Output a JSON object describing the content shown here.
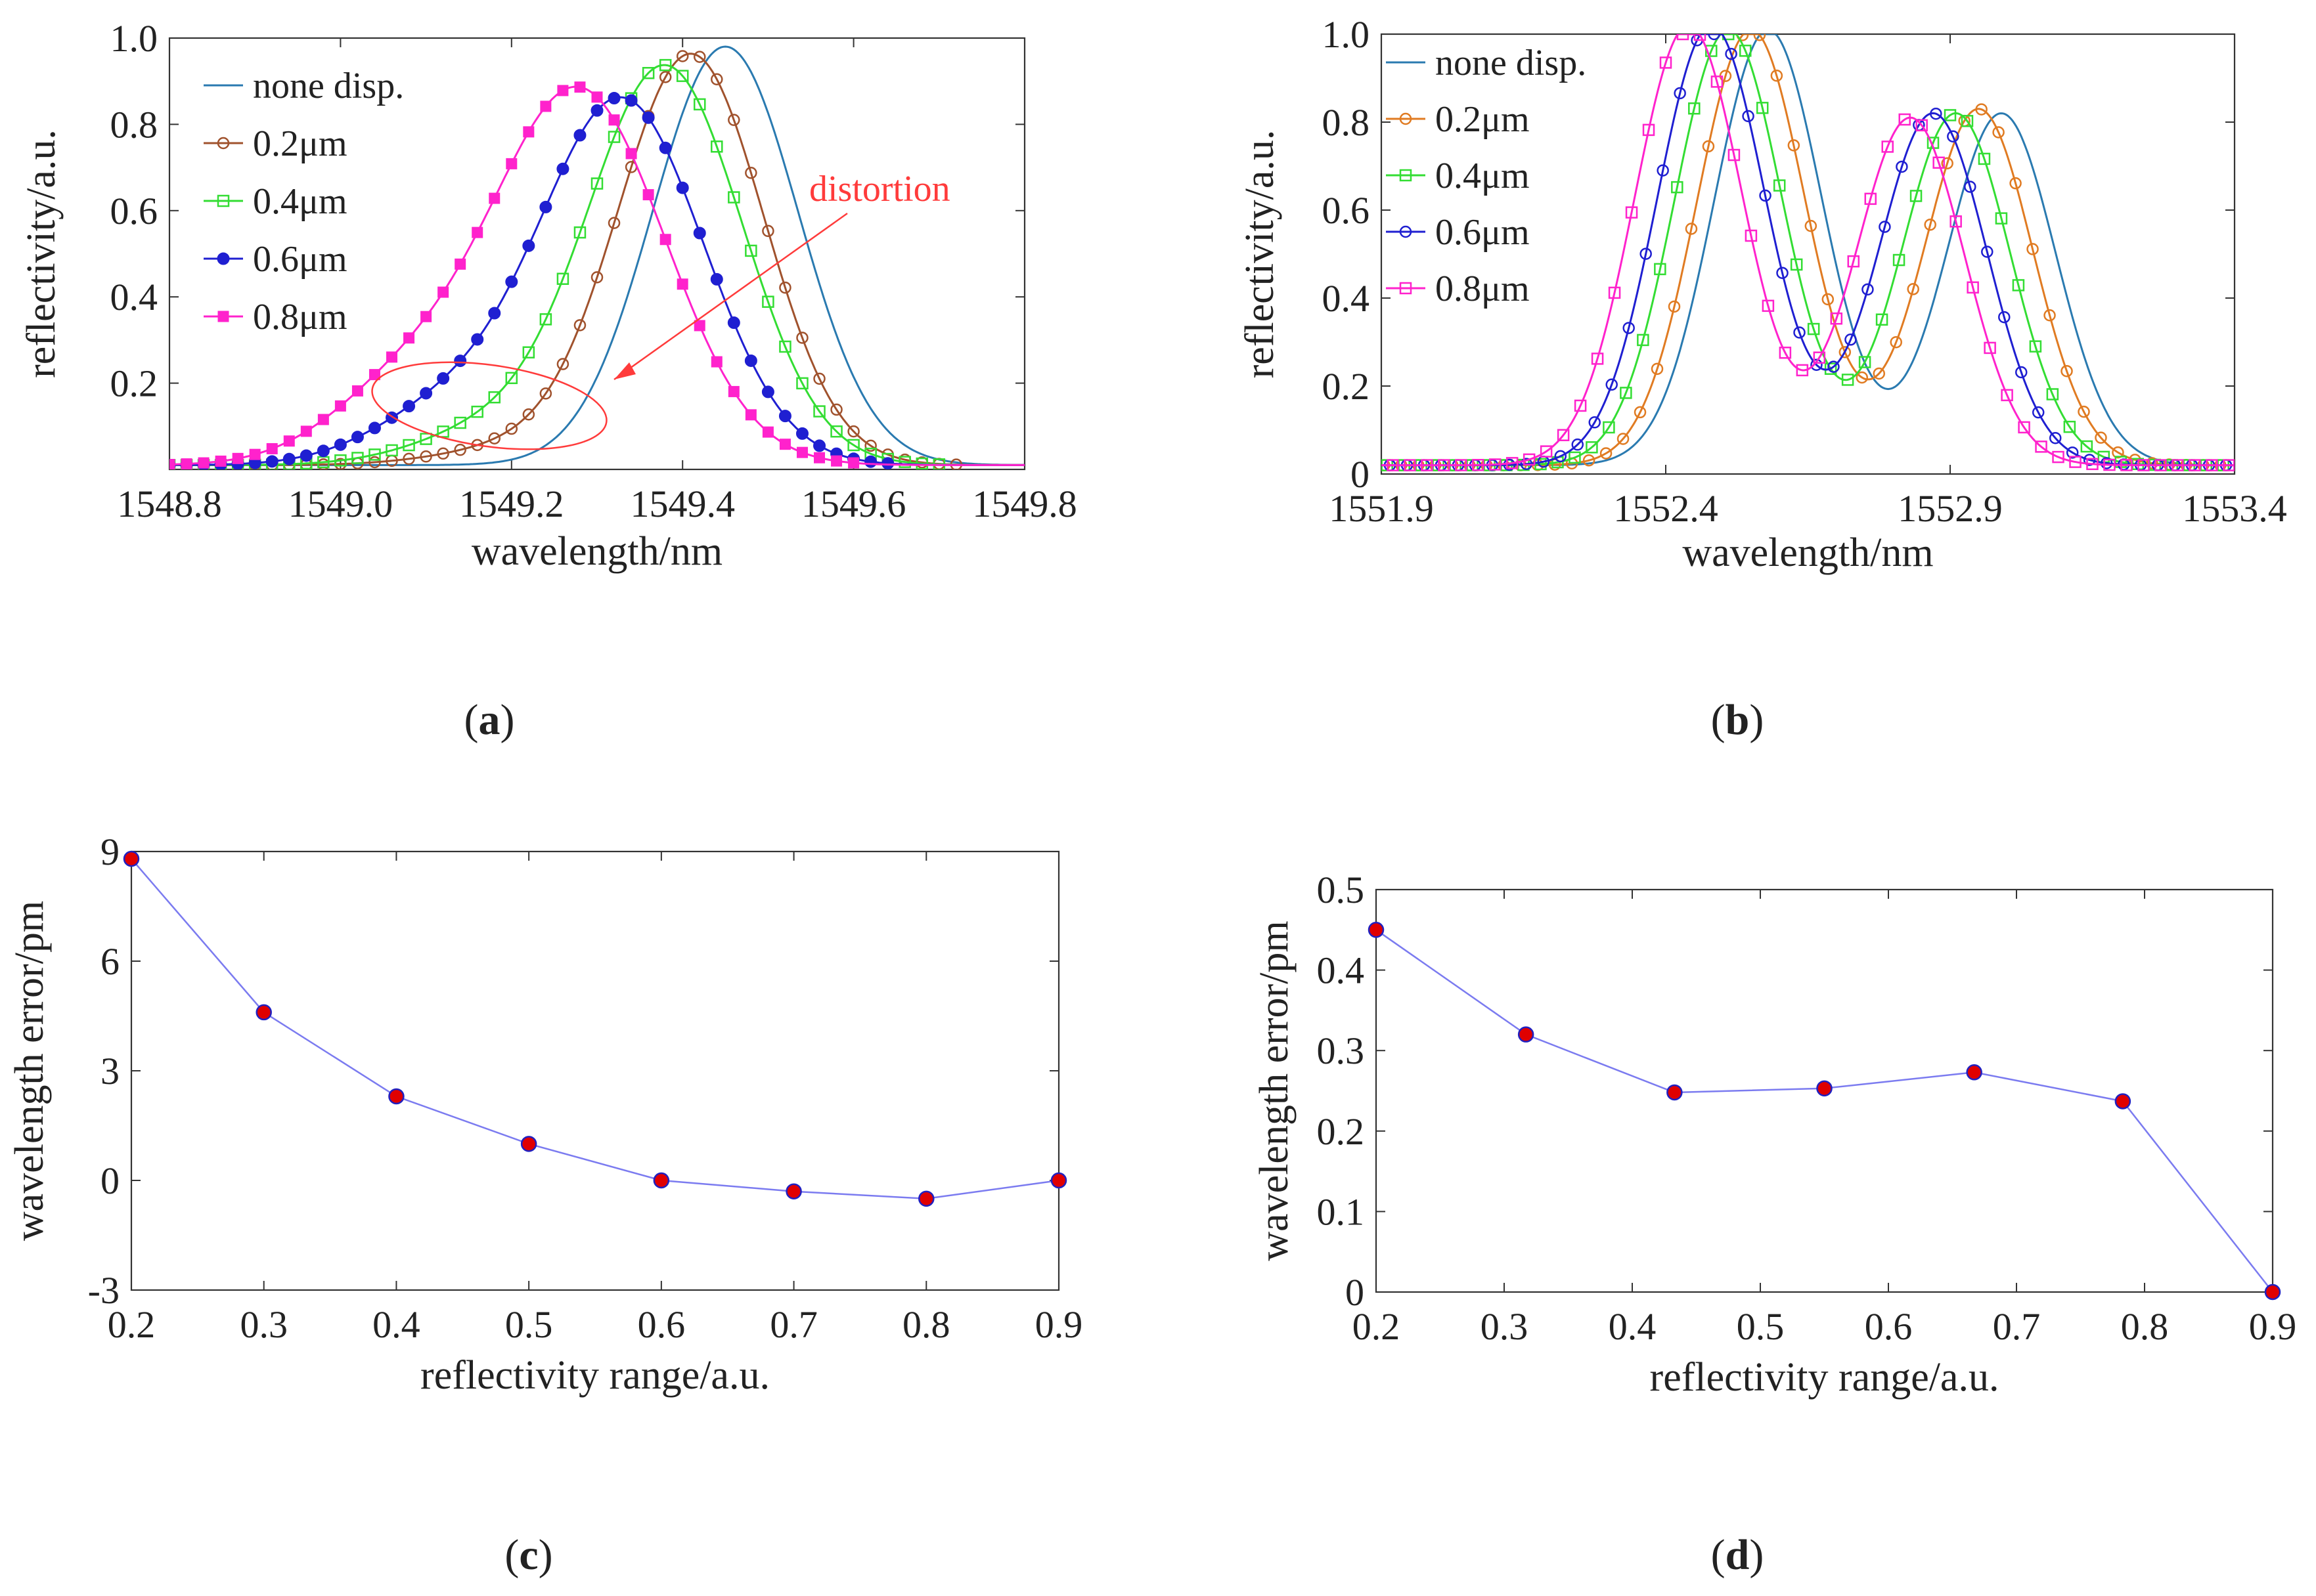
{
  "panels": {
    "a": {
      "label": "a"
    },
    "b": {
      "label": "b"
    },
    "c": {
      "label": "c"
    },
    "d": {
      "label": "d"
    }
  },
  "annotation_a": {
    "text": "distortion",
    "color": "#ff3b3b"
  },
  "chart_data": [
    {
      "id": "a",
      "type": "line",
      "title": "",
      "xlabel": "wavelength/nm",
      "ylabel": "reflectivity/a.u.",
      "xlim": [
        1548.8,
        1549.8
      ],
      "ylim": [
        0,
        1.0
      ],
      "xticks": [
        1548.8,
        1549.0,
        1549.2,
        1549.4,
        1549.6,
        1549.8
      ],
      "xtick_labels": [
        "1548.8",
        "1549.0",
        "1549.2",
        "1549.4",
        "1549.6",
        "1549.8"
      ],
      "yticks": [
        0.2,
        0.4,
        0.6,
        0.8,
        1.0
      ],
      "ytick_labels": [
        "0.2",
        "0.4",
        "0.6",
        "0.8",
        "1.0"
      ],
      "legend_position": "top-left",
      "series": [
        {
          "name": "none disp.",
          "color": "#2a7ab0",
          "marker": "none",
          "peak_x": 1549.45,
          "peak_y": 0.98,
          "width": 0.085,
          "shoulder": 0.0
        },
        {
          "name": "0.2μm",
          "color": "#a0522d",
          "marker": "circle-open",
          "peak_x": 1549.41,
          "peak_y": 0.96,
          "width": 0.085,
          "shoulder": 0.04
        },
        {
          "name": "0.4μm",
          "color": "#33dd33",
          "marker": "square-open",
          "peak_x": 1549.38,
          "peak_y": 0.93,
          "width": 0.09,
          "shoulder": 0.08
        },
        {
          "name": "0.6μm",
          "color": "#1f1fd1",
          "marker": "circle-filled",
          "peak_x": 1549.33,
          "peak_y": 0.85,
          "width": 0.095,
          "shoulder": 0.13
        },
        {
          "name": "0.8μm",
          "color": "#ff22cc",
          "marker": "square-filled",
          "peak_x": 1549.28,
          "peak_y": 0.87,
          "width": 0.1,
          "shoulder": 0.18
        }
      ]
    },
    {
      "id": "b",
      "type": "line",
      "title": "",
      "xlabel": "wavelength/nm",
      "ylabel": "reflectivity/a.u.",
      "xlim": [
        1551.9,
        1553.4
      ],
      "ylim": [
        0,
        1.0
      ],
      "xticks": [
        1551.9,
        1552.4,
        1552.9,
        1553.4
      ],
      "xtick_labels": [
        "1551.9",
        "1552.4",
        "1552.9",
        "1553.4"
      ],
      "yticks": [
        0,
        0.2,
        0.4,
        0.6,
        0.8,
        1.0
      ],
      "ytick_labels": [
        "0",
        "0.2",
        "0.4",
        "0.6",
        "0.8",
        "1.0"
      ],
      "legend_position": "top-left",
      "series": [
        {
          "name": "none disp.",
          "color": "#2a7ab0",
          "marker": "none",
          "p1_x": 1552.58,
          "p1_y": 0.99,
          "p2_x": 1552.99,
          "p2_y": 0.8
        },
        {
          "name": "0.2μm",
          "color": "#e07b22",
          "marker": "circle-open",
          "p1_x": 1552.55,
          "p1_y": 0.99,
          "p2_x": 1552.95,
          "p2_y": 0.81
        },
        {
          "name": "0.4μm",
          "color": "#33dd33",
          "marker": "square-open",
          "p1_x": 1552.51,
          "p1_y": 0.99,
          "p2_x": 1552.91,
          "p2_y": 0.8
        },
        {
          "name": "0.6μm",
          "color": "#1f1fd1",
          "marker": "circle-open",
          "p1_x": 1552.48,
          "p1_y": 1.0,
          "p2_x": 1552.87,
          "p2_y": 0.8
        },
        {
          "name": "0.8μm",
          "color": "#ff22cc",
          "marker": "square-open",
          "p1_x": 1552.44,
          "p1_y": 1.0,
          "p2_x": 1552.83,
          "p2_y": 0.79
        }
      ]
    },
    {
      "id": "c",
      "type": "line",
      "title": "",
      "xlabel": "reflectivity range/a.u.",
      "ylabel": "wavelength error/pm",
      "xlim": [
        0.2,
        0.9
      ],
      "ylim": [
        -3,
        9
      ],
      "xticks": [
        0.2,
        0.3,
        0.4,
        0.5,
        0.6,
        0.7,
        0.8,
        0.9
      ],
      "xtick_labels": [
        "0.2",
        "0.3",
        "0.4",
        "0.5",
        "0.6",
        "0.7",
        "0.8",
        "0.9"
      ],
      "yticks": [
        -3,
        0,
        3,
        6,
        9
      ],
      "ytick_labels": [
        "-3",
        "0",
        "3",
        "6",
        "9"
      ],
      "series": [
        {
          "name": "wavelength error",
          "color": "#7b7bf0",
          "marker_color": "#e00000",
          "marker_edge": "#2020c0",
          "x": [
            0.2,
            0.3,
            0.4,
            0.5,
            0.6,
            0.7,
            0.8,
            0.9
          ],
          "y": [
            8.8,
            4.6,
            2.3,
            1.0,
            0.0,
            -0.3,
            -0.5,
            0.0
          ]
        }
      ]
    },
    {
      "id": "d",
      "type": "line",
      "title": "",
      "xlabel": "reflectivity range/a.u.",
      "ylabel": "wavelength error/pm",
      "xlim": [
        0.2,
        0.9
      ],
      "ylim": [
        0,
        0.5
      ],
      "xticks": [
        0.2,
        0.3,
        0.4,
        0.5,
        0.6,
        0.7,
        0.8,
        0.9
      ],
      "xtick_labels": [
        "0.2",
        "0.3",
        "0.4",
        "0.5",
        "0.6",
        "0.7",
        "0.8",
        "0.9"
      ],
      "yticks": [
        0,
        0.1,
        0.2,
        0.3,
        0.4,
        0.5
      ],
      "ytick_labels": [
        "0",
        "0.1",
        "0.2",
        "0.3",
        "0.4",
        "0.5"
      ],
      "series": [
        {
          "name": "wavelength error",
          "color": "#7b7bf0",
          "marker_color": "#e00000",
          "marker_edge": "#2020c0",
          "x": [
            0.2,
            0.317,
            0.433,
            0.55,
            0.667,
            0.783,
            0.9
          ],
          "y": [
            0.45,
            0.32,
            0.248,
            0.253,
            0.273,
            0.237,
            0.0
          ]
        }
      ]
    }
  ]
}
